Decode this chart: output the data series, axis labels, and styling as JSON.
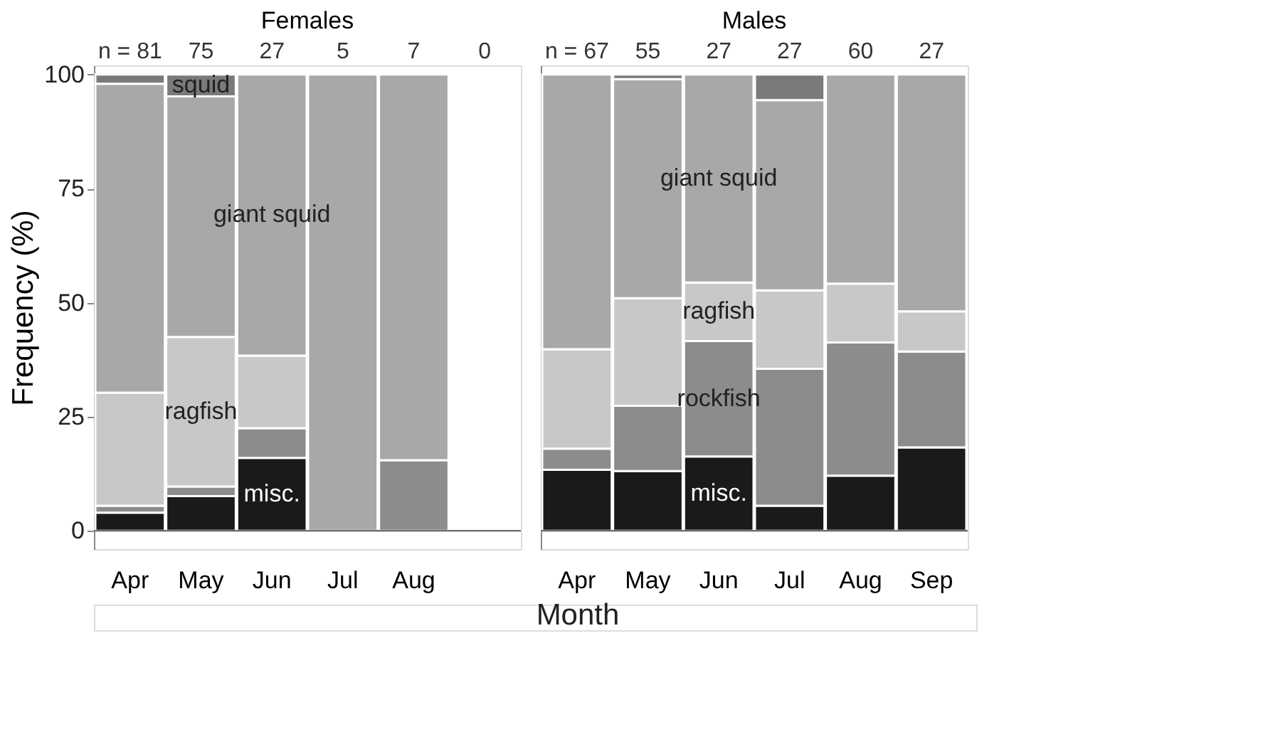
{
  "chart_data": [
    {
      "type": "bar",
      "stacked": true,
      "title": "Females",
      "ylabel": "Frequency (%)",
      "xlabel": "Month",
      "categories": [
        "Apr",
        "May",
        "Jun",
        "Jul",
        "Aug",
        null
      ],
      "series": [
        {
          "name": "misc.",
          "color": "#1a1a1a",
          "values": [
            4,
            7.6,
            16,
            0,
            0,
            0
          ]
        },
        {
          "color": "#8c8c8c",
          "values": [
            1.5,
            2.1,
            6.5,
            0,
            15.5,
            0
          ]
        },
        {
          "name": "ragfish",
          "color": "#c8c8c8",
          "values": [
            24.8,
            32.8,
            15.9,
            0,
            0,
            0
          ]
        },
        {
          "name": "giant squid",
          "color": "#a8a8a8",
          "values": [
            67.7,
            52.7,
            61.6,
            100,
            84.5,
            0
          ]
        },
        {
          "name": "squid",
          "color": "#7a7a7a",
          "values": [
            2,
            4.8,
            0,
            0,
            0,
            0
          ]
        }
      ],
      "ylim": [
        -4,
        102
      ],
      "yticks": [
        0,
        25,
        50,
        75,
        100
      ],
      "annotations": [
        "n = 81",
        "75",
        "27",
        "5",
        "7",
        "0"
      ]
    },
    {
      "type": "bar",
      "stacked": true,
      "title": "Males",
      "categories": [
        "Apr",
        "May",
        "Jun",
        "Jul",
        "Aug",
        "Sep"
      ],
      "series": [
        {
          "name": "misc.",
          "color": "#1a1a1a",
          "values": [
            13.4,
            13.1,
            16.3,
            5.5,
            12.1,
            18.3
          ]
        },
        {
          "name": "rockfish",
          "color": "#8c8c8c",
          "values": [
            4.6,
            14.3,
            25.3,
            30,
            29.2,
            21
          ]
        },
        {
          "name": "ragfish",
          "color": "#c8c8c8",
          "values": [
            21.8,
            23.6,
            12.8,
            17.2,
            12.9,
            8.8
          ]
        },
        {
          "name": "giant squid",
          "color": "#a8a8a8",
          "values": [
            60.2,
            48,
            45.6,
            41.7,
            45.8,
            51.9
          ]
        },
        {
          "color": "#7a7a7a",
          "values": [
            0,
            1,
            0,
            5.6,
            0,
            0
          ]
        }
      ],
      "ylim": [
        -4,
        102
      ],
      "yticks": [
        0,
        25,
        50,
        75,
        100
      ],
      "tick_labels": "x",
      "annotations": [
        "n = 67",
        "55",
        "27",
        "27",
        "60",
        "27"
      ]
    }
  ]
}
